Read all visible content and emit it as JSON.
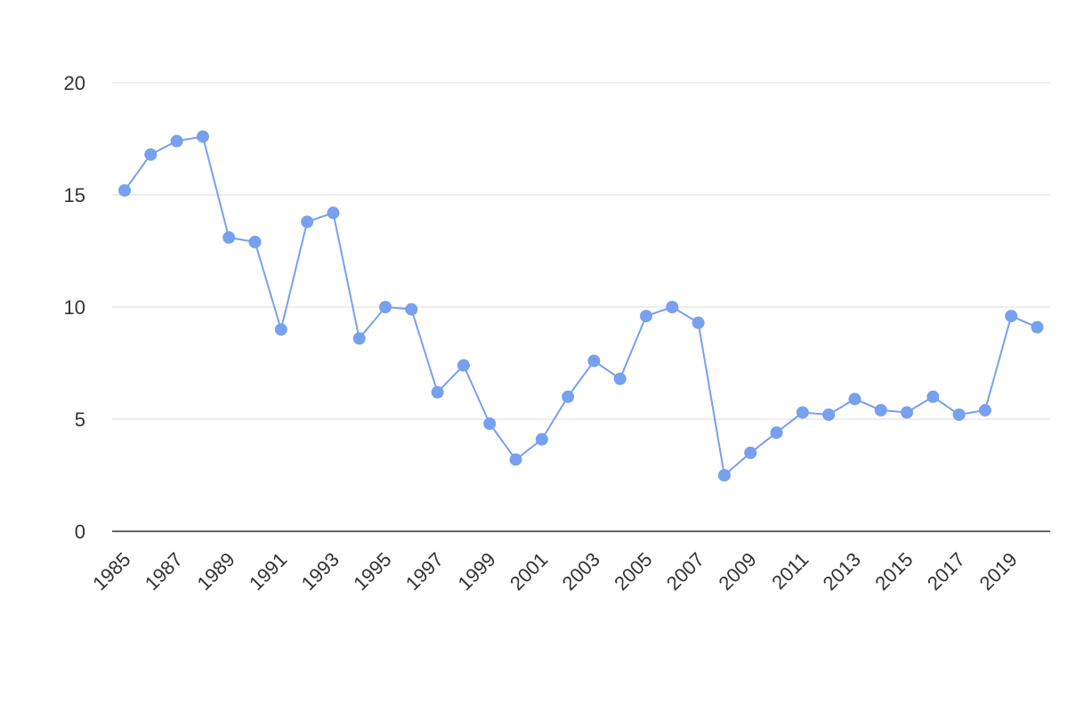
{
  "chart_data": {
    "type": "line",
    "title": "",
    "xlabel": "",
    "ylabel": "",
    "x": [
      1985,
      1986,
      1987,
      1988,
      1989,
      1990,
      1991,
      1992,
      1993,
      1994,
      1995,
      1996,
      1997,
      1998,
      1999,
      2000,
      2001,
      2002,
      2003,
      2004,
      2005,
      2006,
      2007,
      2008,
      2009,
      2010,
      2011,
      2012,
      2013,
      2014,
      2015,
      2016,
      2017,
      2018,
      2019,
      2020
    ],
    "x_tick_labels": [
      "1985",
      "1987",
      "1989",
      "1991",
      "1993",
      "1995",
      "1997",
      "1999",
      "2001",
      "2003",
      "2005",
      "2007",
      "2009",
      "2011",
      "2013",
      "2015",
      "2017",
      "2019"
    ],
    "y_tick_labels": [
      "0",
      "5",
      "10",
      "15",
      "20"
    ],
    "ylim": [
      0,
      20
    ],
    "grid": true,
    "series": [
      {
        "values": [
          15.2,
          16.8,
          17.4,
          17.6,
          13.1,
          12.9,
          9.0,
          13.8,
          14.2,
          8.6,
          10.0,
          9.9,
          6.2,
          7.4,
          4.8,
          3.2,
          4.1,
          6.0,
          7.6,
          6.8,
          9.6,
          10.0,
          9.3,
          2.5,
          3.5,
          4.4,
          5.3,
          5.2,
          5.9,
          5.4,
          5.3,
          6.0,
          5.2,
          5.4,
          9.6,
          9.1
        ],
        "color": "#77a0ee"
      }
    ]
  }
}
